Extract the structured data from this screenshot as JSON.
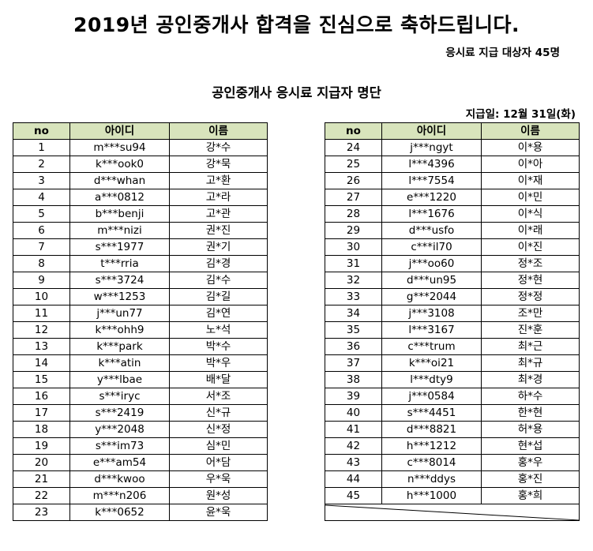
{
  "title": "2019년 공인중개사 합격을 진심으로 축하드립니다.",
  "recipient_count": "응시료 지급 대상자 45명",
  "list_title": "공인중개사 응시료 지급자 명단",
  "payment_date": "지급일: 12월 31일(화)",
  "headers": {
    "no": "no",
    "id": "아이디",
    "name": "이름"
  },
  "left_rows": [
    {
      "no": "1",
      "id": "m***su94",
      "name": "강*수"
    },
    {
      "no": "2",
      "id": "k***ook0",
      "name": "강*묵"
    },
    {
      "no": "3",
      "id": "d***whan",
      "name": "고*환"
    },
    {
      "no": "4",
      "id": "a***0812",
      "name": "고*라"
    },
    {
      "no": "5",
      "id": "b***benji",
      "name": "고*관"
    },
    {
      "no": "6",
      "id": "m***nizi",
      "name": "권*진"
    },
    {
      "no": "7",
      "id": "s***1977",
      "name": "권*기"
    },
    {
      "no": "8",
      "id": "t***rria",
      "name": "김*경"
    },
    {
      "no": "9",
      "id": "s***3724",
      "name": "김*수"
    },
    {
      "no": "10",
      "id": "w***1253",
      "name": "김*길"
    },
    {
      "no": "11",
      "id": "j***un77",
      "name": "김*연"
    },
    {
      "no": "12",
      "id": "k***ohh9",
      "name": "노*석"
    },
    {
      "no": "13",
      "id": "k***park",
      "name": "박*수"
    },
    {
      "no": "14",
      "id": "k***atin",
      "name": "박*우"
    },
    {
      "no": "15",
      "id": "y***lbae",
      "name": "배*달"
    },
    {
      "no": "16",
      "id": "s***iryc",
      "name": "서*조"
    },
    {
      "no": "17",
      "id": "s***2419",
      "name": "신*규"
    },
    {
      "no": "18",
      "id": "y***2048",
      "name": "신*정"
    },
    {
      "no": "19",
      "id": "s***im73",
      "name": "심*민"
    },
    {
      "no": "20",
      "id": "e***am54",
      "name": "어*담"
    },
    {
      "no": "21",
      "id": "d***kwoo",
      "name": "우*욱"
    },
    {
      "no": "22",
      "id": "m***n206",
      "name": "원*성"
    },
    {
      "no": "23",
      "id": "k***0652",
      "name": "윤*욱"
    }
  ],
  "right_rows": [
    {
      "no": "24",
      "id": "j***ngyt",
      "name": "이*용"
    },
    {
      "no": "25",
      "id": "l***4396",
      "name": "이*아"
    },
    {
      "no": "26",
      "id": "l***7554",
      "name": "이*재"
    },
    {
      "no": "27",
      "id": "e***1220",
      "name": "이*민"
    },
    {
      "no": "28",
      "id": "l***1676",
      "name": "이*식"
    },
    {
      "no": "29",
      "id": "d***usfo",
      "name": "이*래"
    },
    {
      "no": "30",
      "id": "c***il70",
      "name": "이*진"
    },
    {
      "no": "31",
      "id": "j***oo60",
      "name": "정*조"
    },
    {
      "no": "32",
      "id": "d***un95",
      "name": "정*현"
    },
    {
      "no": "33",
      "id": "g***2044",
      "name": "정*정"
    },
    {
      "no": "34",
      "id": "j***3108",
      "name": "조*만"
    },
    {
      "no": "35",
      "id": "l***3167",
      "name": "진*훈"
    },
    {
      "no": "36",
      "id": "c***trum",
      "name": "최*근"
    },
    {
      "no": "37",
      "id": "k***oi21",
      "name": "최*규"
    },
    {
      "no": "38",
      "id": "l***dty9",
      "name": "최*경"
    },
    {
      "no": "39",
      "id": "j***0584",
      "name": "하*수"
    },
    {
      "no": "40",
      "id": "s***4451",
      "name": "한*현"
    },
    {
      "no": "41",
      "id": "d***8821",
      "name": "허*용"
    },
    {
      "no": "42",
      "id": "h***1212",
      "name": "현*섭"
    },
    {
      "no": "43",
      "id": "c***8014",
      "name": "홍*우"
    },
    {
      "no": "44",
      "id": "n***ddys",
      "name": "홍*진"
    },
    {
      "no": "45",
      "id": "h***1000",
      "name": "홍*희"
    }
  ]
}
